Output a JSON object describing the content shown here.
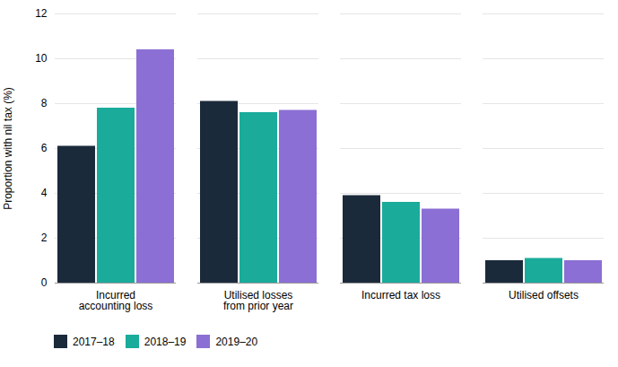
{
  "chart_data": {
    "type": "bar",
    "categories": [
      "Incurred\naccounting loss",
      "Utilised losses\nfrom prior year",
      "Incurred tax loss",
      "Utilised offsets"
    ],
    "series": [
      {
        "name": "2017–18",
        "color": "#1b2a3b",
        "values": [
          6.1,
          8.1,
          3.9,
          1.0
        ]
      },
      {
        "name": "2018–19",
        "color": "#1aab9b",
        "values": [
          7.8,
          7.6,
          3.6,
          1.1
        ]
      },
      {
        "name": "2019–20",
        "color": "#8b6fd4",
        "values": [
          10.4,
          7.7,
          3.3,
          1.0
        ]
      }
    ],
    "ylabel": "Proportion with nil tax (%)",
    "ylim": [
      0,
      12
    ],
    "yticks": [
      0,
      2,
      4,
      6,
      8,
      10,
      12
    ],
    "grid": true,
    "legend": "bottom"
  }
}
